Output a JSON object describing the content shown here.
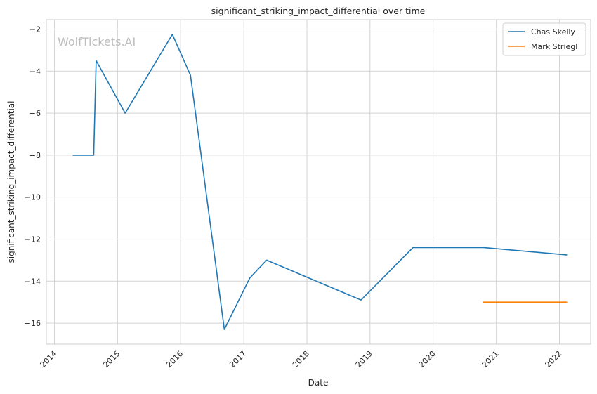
{
  "chart_data": {
    "type": "line",
    "title": "significant_striking_impact_differential over time",
    "xlabel": "Date",
    "ylabel": "significant_striking_impact_differential",
    "watermark": "WolfTickets.AI",
    "xlim": [
      "2013-11-15",
      "2022-07-01"
    ],
    "ylim": [
      -17.0,
      -1.55
    ],
    "x_ticks": [
      "2014",
      "2015",
      "2016",
      "2017",
      "2018",
      "2019",
      "2020",
      "2021",
      "2022"
    ],
    "y_ticks": [
      -16,
      -14,
      -12,
      -10,
      -8,
      -6,
      -4,
      -2
    ],
    "y_tick_labels": [
      "−16",
      "−14",
      "−12",
      "−10",
      "−8",
      "−6",
      "−4",
      "−2"
    ],
    "grid": true,
    "legend_position": "top-right",
    "series": [
      {
        "name": "Chas Skelly",
        "color": "#1f77b4",
        "points": [
          {
            "x": "2014-04-19",
            "y": -8.0
          },
          {
            "x": "2014-08-16",
            "y": -8.0
          },
          {
            "x": "2014-08-30",
            "y": -3.5
          },
          {
            "x": "2015-02-14",
            "y": -6.0
          },
          {
            "x": "2015-11-14",
            "y": -2.25
          },
          {
            "x": "2016-02-27",
            "y": -4.2
          },
          {
            "x": "2016-09-10",
            "y": -16.3
          },
          {
            "x": "2017-02-04",
            "y": -13.85
          },
          {
            "x": "2017-05-13",
            "y": -13.0
          },
          {
            "x": "2018-11-10",
            "y": -14.9
          },
          {
            "x": "2019-09-07",
            "y": -12.4
          },
          {
            "x": "2020-10-17",
            "y": -12.4
          },
          {
            "x": "2022-02-12",
            "y": -12.75
          }
        ]
      },
      {
        "name": "Mark Striegl",
        "color": "#ff7f0e",
        "points": [
          {
            "x": "2020-10-17",
            "y": -15.0
          },
          {
            "x": "2022-02-12",
            "y": -15.0
          }
        ]
      }
    ]
  }
}
